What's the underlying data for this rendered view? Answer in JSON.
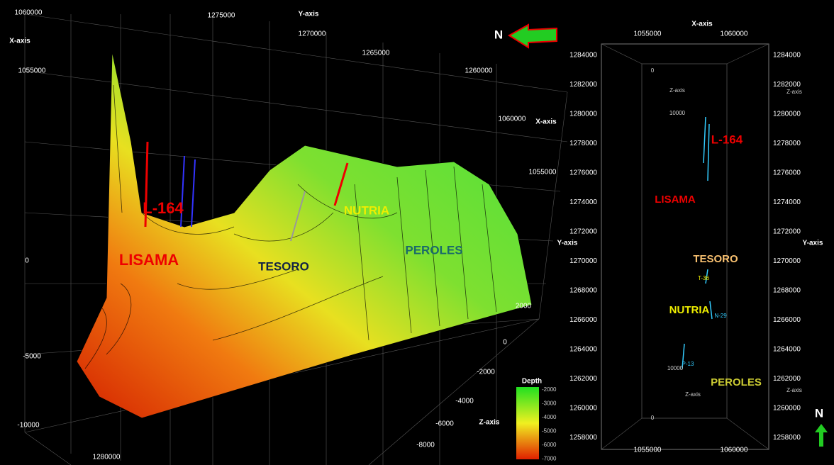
{
  "left_view": {
    "axis_labels": [
      "X-axis",
      "Y-axis",
      "X-axis",
      "Z-axis"
    ],
    "left_ticks": [
      1060000,
      1055000,
      0,
      -5000,
      -10000
    ],
    "top_ticks": [
      1275000,
      1270000,
      1265000,
      1260000
    ],
    "right_ticks": [
      1060000,
      1055000
    ],
    "z_ticks": [
      2000,
      0,
      -2000,
      -4000,
      -6000,
      -8000
    ],
    "bottom_tick": 1280000,
    "north": "N",
    "fields": [
      "L-164",
      "LISAMA",
      "NUTRIA",
      "TESORO",
      "PEROLES"
    ],
    "legend": {
      "title": "Depth",
      "ticks": [
        -2000,
        -3000,
        -4000,
        -5000,
        -6000,
        -7000
      ]
    }
  },
  "map_view": {
    "x_axis": "X-axis",
    "x_ticks": [
      1055000,
      1060000
    ],
    "y_axis": "Y-axis",
    "y_ticks": [
      1284000,
      1282000,
      1280000,
      1278000,
      1276000,
      1274000,
      1272000,
      1270000,
      1268000,
      1266000,
      1264000,
      1262000,
      1260000,
      1258000
    ],
    "z_axis": "Z-axis",
    "z_ticks": [
      0,
      10000
    ],
    "fields": [
      "L-164",
      "LISAMA",
      "TESORO",
      "NUTRIA",
      "PEROLES"
    ],
    "wells": [
      "T-36",
      "N-29",
      "P-13"
    ],
    "north": "N"
  }
}
